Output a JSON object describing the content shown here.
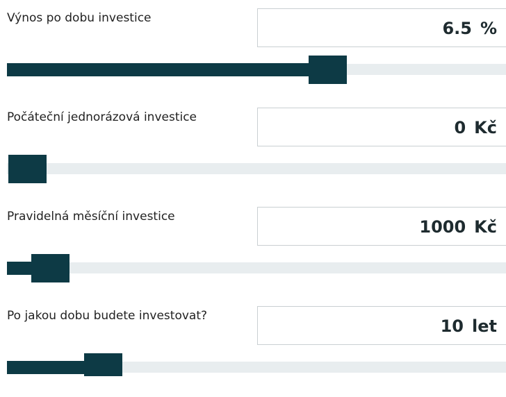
{
  "fields": [
    {
      "label": "Výnos po dobu investice",
      "value": 6.5,
      "unit": "%"
    },
    {
      "label": "Počáteční jednorázová investice",
      "value": 0,
      "unit": "Kč"
    },
    {
      "label": "Pravidelná měsíční investice",
      "value": 1000,
      "unit": "Kč"
    },
    {
      "label": "Po jakou dobu budete investovat?",
      "value": 10,
      "unit": "let"
    }
  ]
}
